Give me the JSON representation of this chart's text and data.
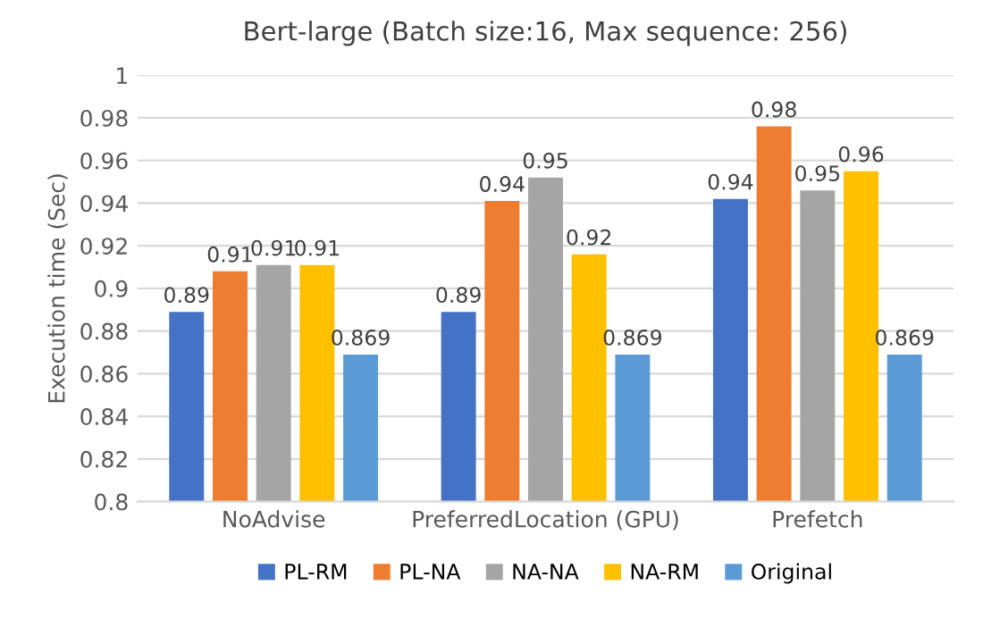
{
  "chart_data": {
    "type": "bar",
    "title": "Bert-large (Batch size:16, Max sequence: 256)",
    "ylabel": "Execution time (Sec)",
    "categories": [
      "NoAdvise",
      "PreferredLocation (GPU)",
      "Prefetch"
    ],
    "series": [
      {
        "name": "PL-RM",
        "color": "#4472c4",
        "values": [
          0.889,
          0.889,
          0.942
        ],
        "value_labels": [
          "0.89",
          "0.89",
          "0.94"
        ]
      },
      {
        "name": "PL-NA",
        "color": "#ed7d31",
        "values": [
          0.908,
          0.941,
          0.976
        ],
        "value_labels": [
          "0.91",
          "0.94",
          "0.98"
        ]
      },
      {
        "name": "NA-NA",
        "color": "#a5a5a5",
        "values": [
          0.911,
          0.952,
          0.946
        ],
        "value_labels": [
          "0.91",
          "0.95",
          "0.95"
        ]
      },
      {
        "name": "NA-RM",
        "color": "#ffc000",
        "values": [
          0.911,
          0.916,
          0.955
        ],
        "value_labels": [
          "0.91",
          "0.92",
          "0.96"
        ]
      },
      {
        "name": "Original",
        "color": "#5b9bd5",
        "values": [
          0.869,
          0.869,
          0.869
        ],
        "value_labels": [
          "0.869",
          "0.869",
          "0.869"
        ]
      }
    ],
    "ylim": [
      0.8,
      1
    ],
    "yticks": [
      0.8,
      0.82,
      0.84,
      0.86,
      0.88,
      0.9,
      0.92,
      0.94,
      0.96,
      0.98,
      1
    ],
    "grid": "y",
    "legend": "bottom"
  }
}
